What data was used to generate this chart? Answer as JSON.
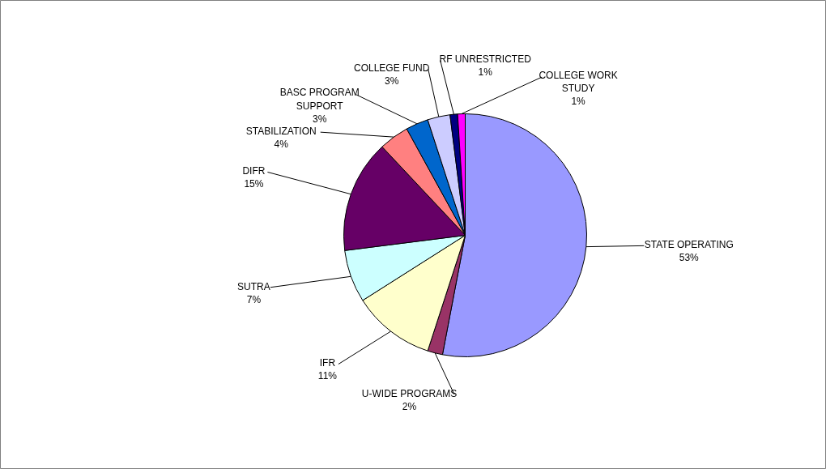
{
  "chart_data": {
    "type": "pie",
    "categories": [
      "STATE OPERATING",
      "U-WIDE PROGRAMS",
      "IFR",
      "SUTRA",
      "DIFR",
      "STABILIZATION",
      "BASC PROGRAM SUPPORT",
      "COLLEGE FUND",
      "RF UNRESTRICTED",
      "COLLEGE WORK STUDY"
    ],
    "values": [
      53,
      2,
      11,
      7,
      15,
      4,
      3,
      3,
      1,
      1
    ],
    "value_labels": [
      "53%",
      "2%",
      "11%",
      "7%",
      "15%",
      "4%",
      "3%",
      "3%",
      "1%",
      "1%"
    ],
    "colors": [
      "#9999ff",
      "#993366",
      "#ffffcc",
      "#ccffff",
      "#660066",
      "#ff8080",
      "#0066cc",
      "#ccccff",
      "#000080",
      "#ff00ff"
    ]
  }
}
